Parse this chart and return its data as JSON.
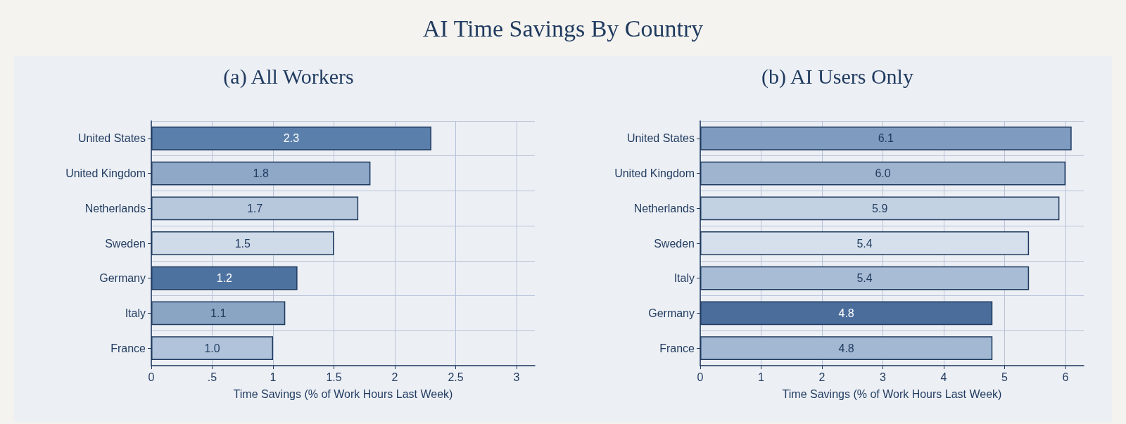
{
  "chart_data": [
    {
      "type": "bar",
      "orientation": "horizontal",
      "title": "AI Time Savings By Country",
      "subtitle": "(a) All Workers",
      "xlabel": "Time Savings (% of Work Hours Last Week)",
      "categories": [
        "United States",
        "United Kingdom",
        "Netherlands",
        "Sweden",
        "Germany",
        "Italy",
        "France"
      ],
      "values": [
        2.3,
        1.8,
        1.7,
        1.5,
        1.2,
        1.1,
        1.0
      ],
      "colors": [
        "#5b7fab",
        "#8fa8c8",
        "#b7c8dc",
        "#cfdbe8",
        "#4d72a0",
        "#8aa4c4",
        "#b0c3da"
      ],
      "data_labels": true,
      "value_labels": [
        "2.3",
        "1.8",
        "1.7",
        "1.5",
        "1.2",
        "1.1",
        "1.0"
      ],
      "xlim": [
        0,
        3.15
      ],
      "xticks": [
        0,
        {
          "value": 0.5,
          "label": ".5"
        },
        1,
        1.5,
        2,
        2.5,
        3
      ],
      "grid": true
    },
    {
      "type": "bar",
      "orientation": "horizontal",
      "subtitle": "(b) AI Users Only",
      "xlabel": "Time Savings (% of Work Hours Last Week)",
      "categories": [
        "United States",
        "United Kingdom",
        "Netherlands",
        "Sweden",
        "Italy",
        "Germany",
        "France"
      ],
      "values": [
        6.1,
        6.0,
        5.9,
        5.4,
        5.4,
        4.8,
        4.8
      ],
      "colors": [
        "#7f9cc0",
        "#9fb4cf",
        "#c3d2e3",
        "#d5e0ec",
        "#a8bcd5",
        "#4a6d9c",
        "#a3b8d2"
      ],
      "data_labels": true,
      "value_labels": [
        "6.1",
        "6.0",
        "5.9",
        "5.4",
        "5.4",
        "4.8",
        "4.8"
      ],
      "xlim": [
        0,
        6.3
      ],
      "xticks": [
        0,
        1,
        2,
        3,
        4,
        5,
        6
      ],
      "grid": true
    }
  ]
}
